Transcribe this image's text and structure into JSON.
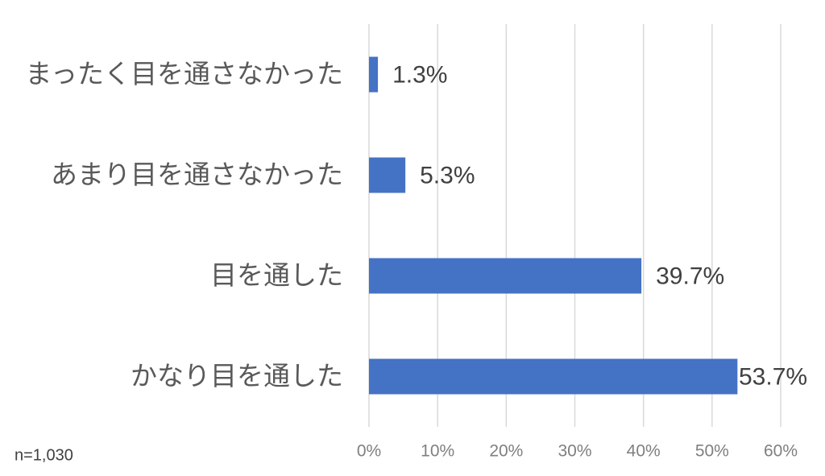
{
  "chart_data": {
    "type": "bar",
    "orientation": "horizontal",
    "categories": [
      "まったく目を通さなかった",
      "あまり目を通さなかった",
      "目を通した",
      "かなり目を通した"
    ],
    "values": [
      1.3,
      5.3,
      39.7,
      53.7
    ],
    "value_labels": [
      "1.3%",
      "5.3%",
      "39.7%",
      "53.7%"
    ],
    "color": "#4472c4",
    "xlim": [
      0,
      60
    ],
    "xticks": [
      {
        "value": 0,
        "label": "0%"
      },
      {
        "value": 10,
        "label": "10%"
      },
      {
        "value": 20,
        "label": "20%"
      },
      {
        "value": 30,
        "label": "30%"
      },
      {
        "value": 40,
        "label": "40%"
      },
      {
        "value": 50,
        "label": "50%"
      },
      {
        "value": 60,
        "label": "60%"
      }
    ],
    "grid": true,
    "annotation": "n=1,030"
  }
}
